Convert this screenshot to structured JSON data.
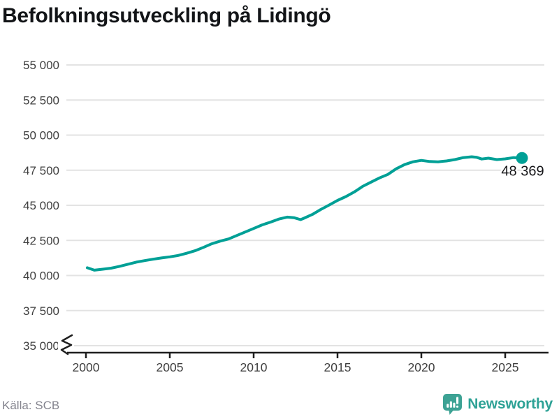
{
  "title": "Befolkningsutveckling på Lidingö",
  "source": "Källa: SCB",
  "brand": {
    "name": "Newsworthy",
    "icon": "newsworthy-pin-barchart-icon",
    "color": "#2ea296",
    "icon_color": "#3da294"
  },
  "colors": {
    "line": "#00a096",
    "grid": "#e3e3e3",
    "axis": "#1f1f1f",
    "tick_text": "#3f3f3f",
    "title_text": "#121417",
    "source_text": "#84848e",
    "end_label_text": "#17171a"
  },
  "chart_data": {
    "type": "line",
    "title": "Befolkningsutveckling på Lidingö",
    "xlabel": "",
    "ylabel": "",
    "xlim": [
      1998.8,
      2027.3
    ],
    "ylim": [
      35000,
      55000
    ],
    "y_axis_break": true,
    "grid": "horizontal",
    "legend_position": "none",
    "y_ticks": {
      "values": [
        55000,
        52500,
        50000,
        47500,
        45000,
        42500,
        40000,
        37500,
        35000
      ],
      "labels": [
        "55 000",
        "52 500",
        "50 000",
        "47 500",
        "45 000",
        "42 500",
        "40 000",
        "37 500",
        "35 000"
      ]
    },
    "x_ticks": {
      "values": [
        2000,
        2005,
        2010,
        2015,
        2020,
        2025
      ],
      "labels": [
        "2000",
        "2005",
        "2010",
        "2015",
        "2020",
        "2025"
      ]
    },
    "series": [
      {
        "name": "Befolkning på Lidingö",
        "color": "#00a096",
        "end_value": 48369,
        "end_point_label": "48 369",
        "points": [
          [
            2000.08,
            40550
          ],
          [
            2000.5,
            40380
          ],
          [
            2001.0,
            40450
          ],
          [
            2001.5,
            40520
          ],
          [
            2002.0,
            40650
          ],
          [
            2002.5,
            40800
          ],
          [
            2003.0,
            40950
          ],
          [
            2003.5,
            41060
          ],
          [
            2004.0,
            41160
          ],
          [
            2004.5,
            41250
          ],
          [
            2005.0,
            41330
          ],
          [
            2005.5,
            41430
          ],
          [
            2006.0,
            41580
          ],
          [
            2006.5,
            41760
          ],
          [
            2007.0,
            42000
          ],
          [
            2007.5,
            42260
          ],
          [
            2008.0,
            42450
          ],
          [
            2008.5,
            42600
          ],
          [
            2009.0,
            42850
          ],
          [
            2009.5,
            43100
          ],
          [
            2010.0,
            43350
          ],
          [
            2010.5,
            43600
          ],
          [
            2011.0,
            43800
          ],
          [
            2011.5,
            44020
          ],
          [
            2012.0,
            44160
          ],
          [
            2012.4,
            44120
          ],
          [
            2012.8,
            43980
          ],
          [
            2013.0,
            44080
          ],
          [
            2013.5,
            44350
          ],
          [
            2014.0,
            44700
          ],
          [
            2014.5,
            45020
          ],
          [
            2015.0,
            45350
          ],
          [
            2015.5,
            45620
          ],
          [
            2016.0,
            45950
          ],
          [
            2016.5,
            46350
          ],
          [
            2017.0,
            46650
          ],
          [
            2017.5,
            46950
          ],
          [
            2018.0,
            47200
          ],
          [
            2018.5,
            47600
          ],
          [
            2019.0,
            47900
          ],
          [
            2019.5,
            48100
          ],
          [
            2020.0,
            48200
          ],
          [
            2020.5,
            48120
          ],
          [
            2021.0,
            48100
          ],
          [
            2021.5,
            48160
          ],
          [
            2022.0,
            48260
          ],
          [
            2022.5,
            48400
          ],
          [
            2023.0,
            48460
          ],
          [
            2023.3,
            48420
          ],
          [
            2023.6,
            48300
          ],
          [
            2024.0,
            48360
          ],
          [
            2024.5,
            48260
          ],
          [
            2025.0,
            48310
          ],
          [
            2025.5,
            48400
          ],
          [
            2026.0,
            48369
          ]
        ]
      }
    ]
  }
}
